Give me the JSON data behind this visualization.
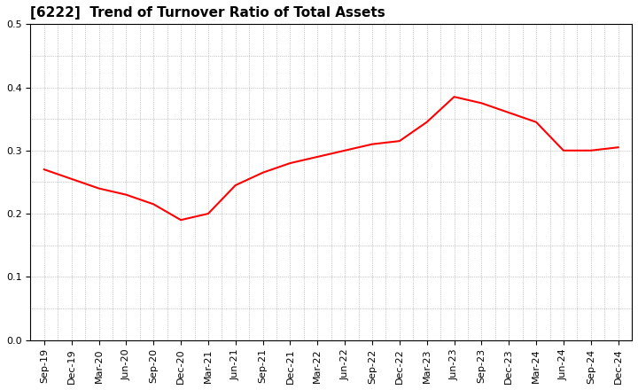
{
  "title": "[6222]  Trend of Turnover Ratio of Total Assets",
  "x_labels": [
    "Sep-19",
    "Dec-19",
    "Mar-20",
    "Jun-20",
    "Sep-20",
    "Dec-20",
    "Mar-21",
    "Jun-21",
    "Sep-21",
    "Dec-21",
    "Mar-22",
    "Jun-22",
    "Sep-22",
    "Dec-22",
    "Mar-23",
    "Jun-23",
    "Sep-23",
    "Dec-23",
    "Mar-24",
    "Jun-24",
    "Sep-24",
    "Dec-24"
  ],
  "y_values": [
    0.27,
    0.255,
    0.24,
    0.23,
    0.215,
    0.19,
    0.2,
    0.245,
    0.265,
    0.28,
    0.29,
    0.3,
    0.31,
    0.315,
    0.345,
    0.385,
    0.375,
    0.36,
    0.345,
    0.3,
    0.3,
    0.305
  ],
  "line_color": "#ff0000",
  "line_width": 1.5,
  "ylim": [
    0.0,
    0.5
  ],
  "yticks": [
    0.0,
    0.1,
    0.2,
    0.3,
    0.4,
    0.5
  ],
  "grid_color": "#999999",
  "background_color": "#ffffff",
  "title_fontsize": 11,
  "tick_fontsize": 8
}
